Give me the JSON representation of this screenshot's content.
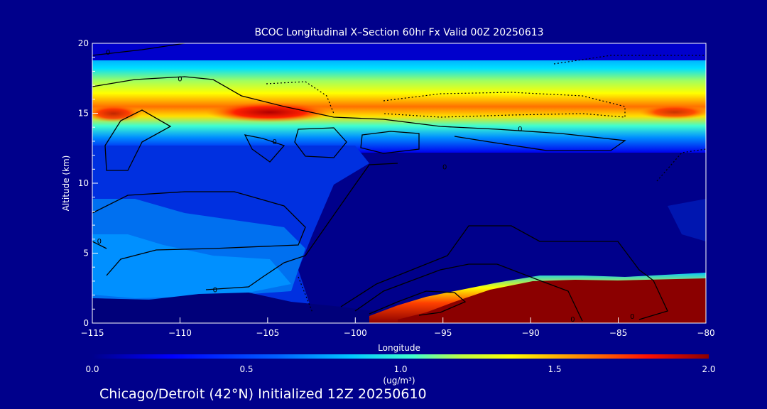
{
  "chart_data": {
    "type": "heatmap",
    "title": "BCOC Longitudinal X–Section 60hr  Fx Valid 00Z 20250613",
    "xlabel": "Longitude",
    "ylabel": "Altitude (km)",
    "xlim": [
      -115,
      -80
    ],
    "ylim": [
      0,
      20
    ],
    "x_ticks": [
      -115,
      -110,
      -105,
      -100,
      -95,
      -90,
      -85,
      -80
    ],
    "x_tick_labels": [
      "−115",
      "−110",
      "−105",
      "−100",
      "−95",
      "−90",
      "−85",
      "−80"
    ],
    "y_ticks": [
      0,
      5,
      10,
      15,
      20
    ],
    "colorbar": {
      "min": 0.0,
      "max": 2.0,
      "ticks": [
        0.0,
        0.5,
        1.0,
        1.5,
        2.0
      ],
      "tick_labels": [
        "0.0",
        "0.5",
        "1.0",
        "1.5",
        "2.0"
      ],
      "unit_label": "(ug/m³)",
      "colors": [
        "#00008b",
        "#0000ff",
        "#00a0ff",
        "#00ffff",
        "#a0ff60",
        "#ffff00",
        "#ff8000",
        "#ff0000",
        "#8b0000"
      ]
    },
    "contour_labels": [
      {
        "text": "0",
        "lon": -114.1,
        "alt": 19.4
      },
      {
        "text": "0",
        "lon": -110.0,
        "alt": 17.5
      },
      {
        "text": "0",
        "lon": -104.6,
        "alt": 13.0
      },
      {
        "text": "0",
        "lon": -90.6,
        "alt": 13.9
      },
      {
        "text": "0",
        "lon": -94.9,
        "alt": 11.2
      },
      {
        "text": "0",
        "lon": -108.0,
        "alt": 2.4
      },
      {
        "text": "0",
        "lon": -114.6,
        "alt": 5.9
      },
      {
        "text": "0",
        "lon": -84.2,
        "alt": 0.5
      },
      {
        "text": "0",
        "lon": -87.6,
        "alt": 0.3
      }
    ],
    "features": [
      {
        "name": "upper-layer-max",
        "lon_range": [
          -109,
          -102
        ],
        "alt": 15.0,
        "value": 2.0
      },
      {
        "name": "upper-layer",
        "lon_range": [
          -115,
          -80
        ],
        "alt_range": [
          13.6,
          17.6
        ],
        "value": 1.3
      },
      {
        "name": "boundary-layer-plume",
        "lon_range": [
          -97,
          -80
        ],
        "alt_range": [
          0,
          3.4
        ],
        "value": 2.0
      }
    ],
    "footer": "Chicago/Detroit (42°N) Initialized 12Z 20250610"
  }
}
